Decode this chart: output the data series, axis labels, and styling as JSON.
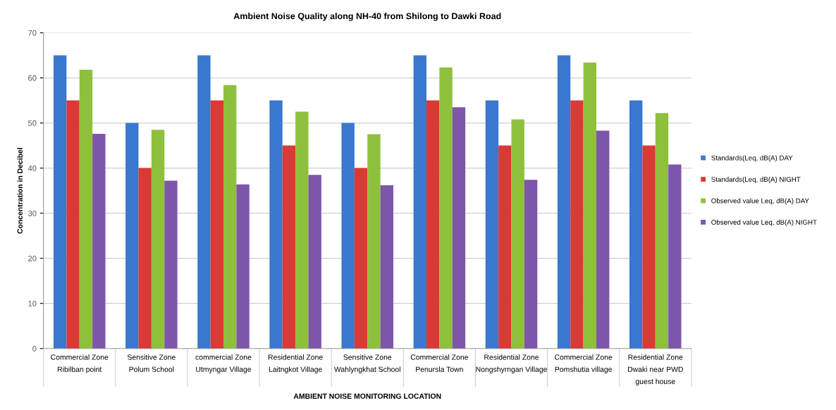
{
  "chart_data": {
    "type": "bar",
    "title": "Ambient Noise Quality along NH-40 from Shilong to Dawki Road",
    "xlabel": "AMBIENT NOISE MONITORING LOCATION",
    "ylabel": "Concentration in Decibel",
    "categories": [
      "Commercial Zone\nRibilban point",
      "Sensitive Zone\nPolum School",
      "commercial Zone\nUtmyngar Village",
      "Residential Zone\nLaitngkot Village",
      "Sensitive Zone\nWahlyngkhat School",
      "Commercial Zone\nPenursla Town",
      "Residential Zone\nNongshyrngan Village",
      "Commercial Zone\nPomshutia village",
      "Residential Zone\nDwaki near PWD\nguest house"
    ],
    "series": [
      {
        "name": "Standards(Leq, dB(A) DAY",
        "color": "#3a78d0",
        "values": [
          65,
          50,
          65,
          55,
          50,
          65,
          55,
          65,
          55
        ]
      },
      {
        "name": "Standards(Leq, dB(A) NIGHT",
        "color": "#d93a36",
        "values": [
          55,
          40,
          55,
          45,
          40,
          55,
          45,
          55,
          45
        ]
      },
      {
        "name": "Observed value Leq, dB(A) DAY",
        "color": "#8fc03c",
        "values": [
          61.8,
          48.5,
          58.4,
          52.5,
          47.5,
          62.3,
          50.8,
          63.4,
          52.2
        ]
      },
      {
        "name": "Observed value Leq, dB(A) NIGHT",
        "color": "#7d55ab",
        "values": [
          47.6,
          37.2,
          36.4,
          38.5,
          36.2,
          53.5,
          37.4,
          48.3,
          40.8
        ]
      }
    ],
    "ylim": [
      0,
      70
    ],
    "yticks": [
      0,
      10,
      20,
      30,
      40,
      50,
      60,
      70
    ],
    "grid": "y",
    "legend": "right"
  }
}
